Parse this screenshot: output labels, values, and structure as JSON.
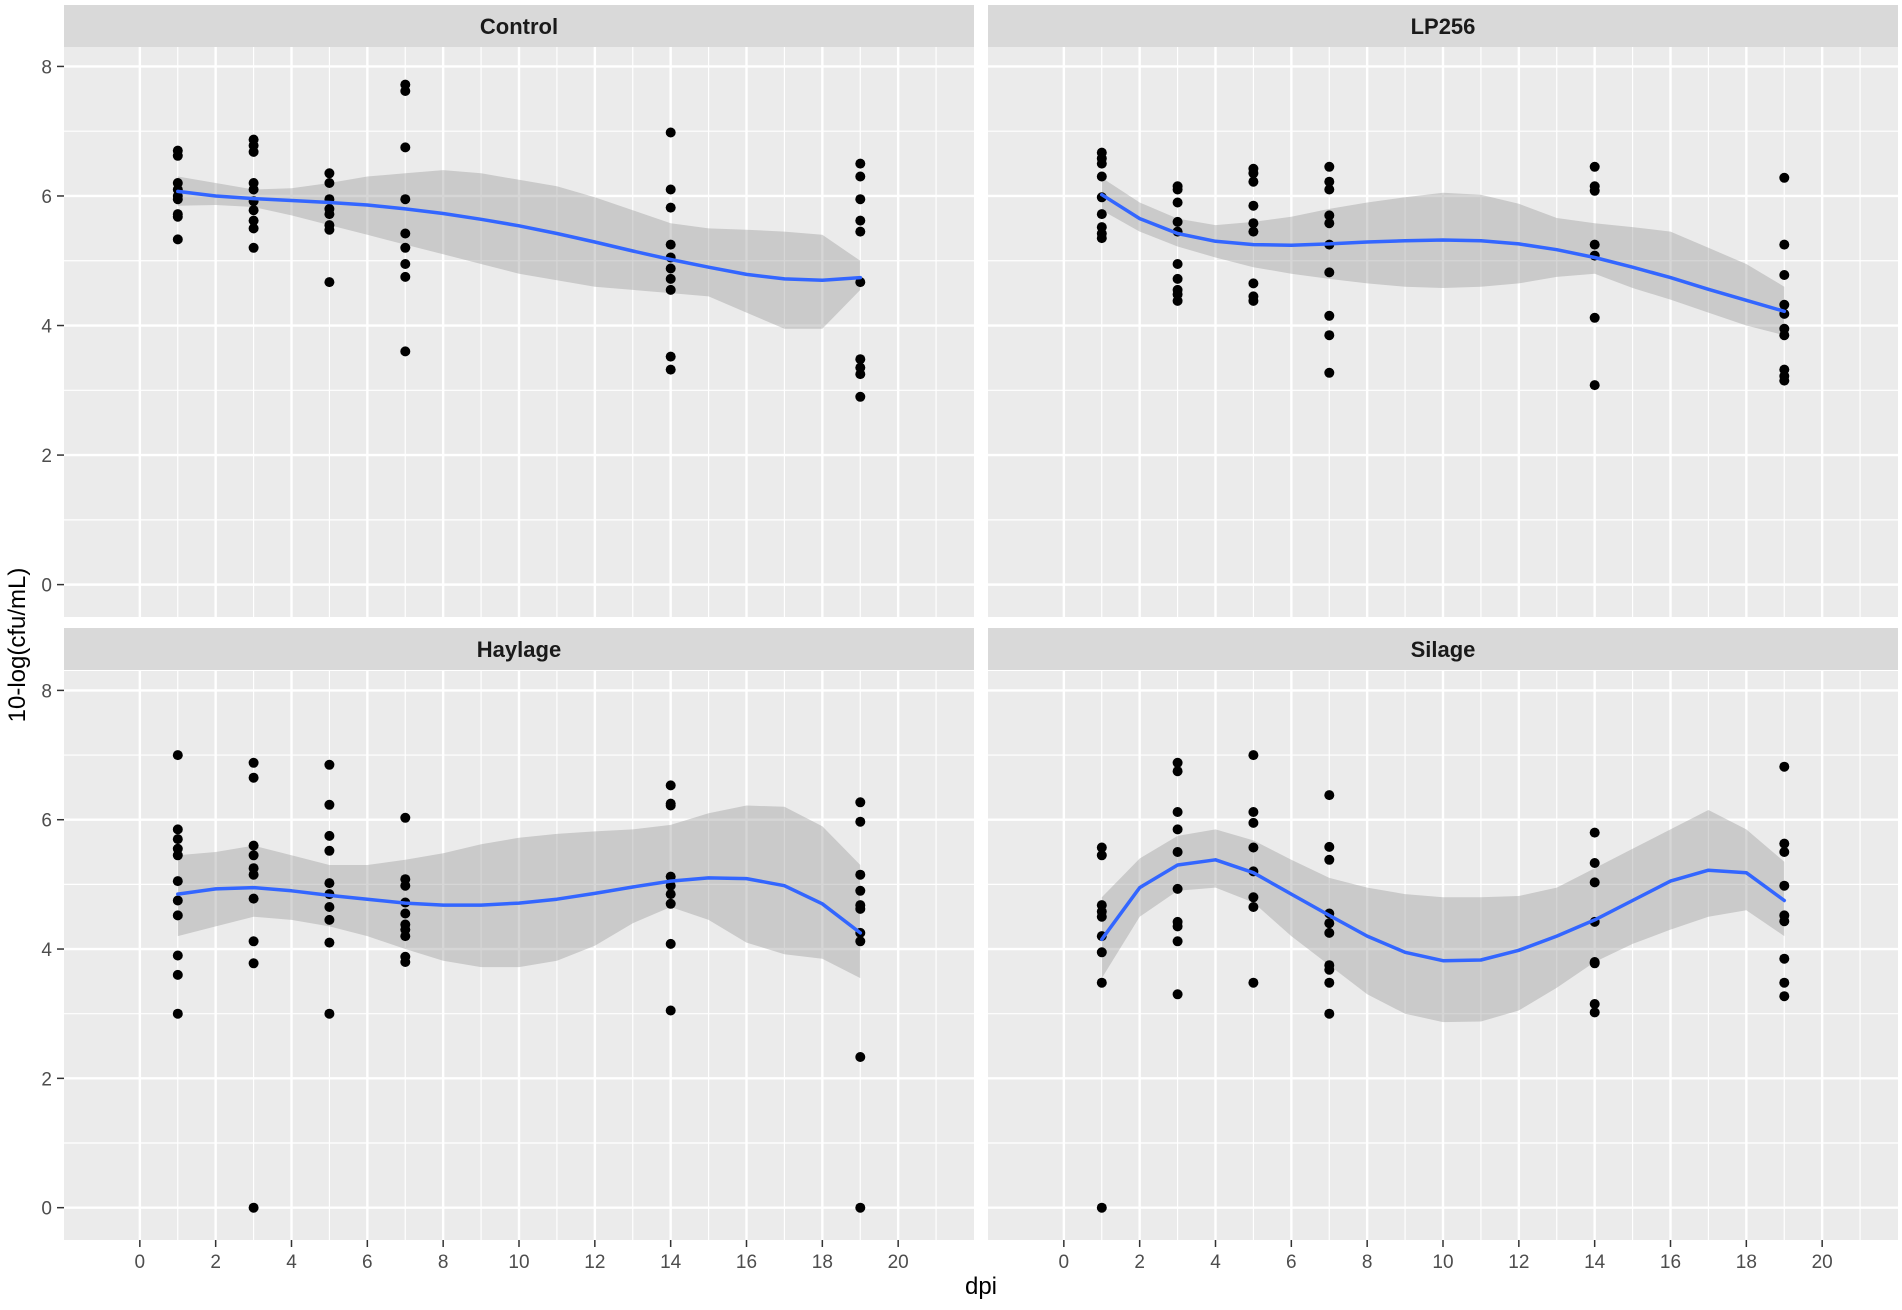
{
  "chart_data": {
    "type": "scatter",
    "layout": "facet-wrap 2x2",
    "xlabel": "dpi",
    "ylabel": "10-log(cfu/mL)",
    "xlim": [
      -2,
      22
    ],
    "ylim": [
      -0.5,
      8.3
    ],
    "x_ticks": [
      0,
      2,
      4,
      6,
      8,
      10,
      12,
      14,
      16,
      18,
      20
    ],
    "y_ticks": [
      0,
      2,
      4,
      6,
      8
    ],
    "colors": {
      "panel_bg": "#ebebeb",
      "strip_bg": "#d9d9d9",
      "grid": "#ffffff",
      "points": "#000000",
      "smooth_line": "#3366ff",
      "ribbon": "#999999"
    },
    "panels": [
      {
        "title": "Control",
        "points": [
          [
            1,
            6.7
          ],
          [
            1,
            6.62
          ],
          [
            1,
            6.2
          ],
          [
            1,
            6.1
          ],
          [
            1,
            6.0
          ],
          [
            1,
            5.95
          ],
          [
            1,
            5.72
          ],
          [
            1,
            5.68
          ],
          [
            1,
            5.33
          ],
          [
            3,
            6.87
          ],
          [
            3,
            6.78
          ],
          [
            3,
            6.68
          ],
          [
            3,
            6.2
          ],
          [
            3,
            6.1
          ],
          [
            3,
            5.92
          ],
          [
            3,
            5.78
          ],
          [
            3,
            5.62
          ],
          [
            3,
            5.5
          ],
          [
            3,
            5.2
          ],
          [
            5,
            6.35
          ],
          [
            5,
            6.2
          ],
          [
            5,
            5.95
          ],
          [
            5,
            5.8
          ],
          [
            5,
            5.72
          ],
          [
            5,
            5.55
          ],
          [
            5,
            5.48
          ],
          [
            5,
            4.67
          ],
          [
            7,
            7.72
          ],
          [
            7,
            7.62
          ],
          [
            7,
            6.75
          ],
          [
            7,
            5.95
          ],
          [
            7,
            5.42
          ],
          [
            7,
            5.2
          ],
          [
            7,
            4.95
          ],
          [
            7,
            4.75
          ],
          [
            7,
            3.6
          ],
          [
            14,
            6.98
          ],
          [
            14,
            6.1
          ],
          [
            14,
            5.82
          ],
          [
            14,
            5.25
          ],
          [
            14,
            5.05
          ],
          [
            14,
            4.88
          ],
          [
            14,
            4.72
          ],
          [
            14,
            4.55
          ],
          [
            14,
            3.52
          ],
          [
            14,
            3.32
          ],
          [
            19,
            6.5
          ],
          [
            19,
            6.3
          ],
          [
            19,
            5.95
          ],
          [
            19,
            5.62
          ],
          [
            19,
            5.45
          ],
          [
            19,
            4.67
          ],
          [
            19,
            3.48
          ],
          [
            19,
            3.35
          ],
          [
            19,
            3.25
          ],
          [
            19,
            2.9
          ]
        ],
        "smooth": {
          "x": [
            1,
            2,
            3,
            4,
            5,
            6,
            7,
            8,
            9,
            10,
            11,
            12,
            13,
            14,
            15,
            16,
            17,
            18,
            19
          ],
          "y": [
            6.07,
            6.0,
            5.96,
            5.93,
            5.9,
            5.86,
            5.8,
            5.73,
            5.64,
            5.54,
            5.42,
            5.29,
            5.15,
            5.02,
            4.9,
            4.79,
            4.72,
            4.7,
            4.74
          ],
          "lower": [
            5.85,
            5.86,
            5.83,
            5.7,
            5.55,
            5.4,
            5.25,
            5.1,
            4.95,
            4.8,
            4.7,
            4.6,
            4.55,
            4.5,
            4.45,
            4.2,
            3.95,
            3.95,
            4.55
          ],
          "upper": [
            6.3,
            6.2,
            6.1,
            6.12,
            6.2,
            6.3,
            6.35,
            6.4,
            6.35,
            6.25,
            6.15,
            5.98,
            5.78,
            5.58,
            5.5,
            5.48,
            5.45,
            5.4,
            5.0
          ]
        }
      },
      {
        "title": "LP256",
        "points": [
          [
            1,
            6.67
          ],
          [
            1,
            6.58
          ],
          [
            1,
            6.5
          ],
          [
            1,
            6.3
          ],
          [
            1,
            5.98
          ],
          [
            1,
            5.72
          ],
          [
            1,
            5.52
          ],
          [
            1,
            5.42
          ],
          [
            1,
            5.35
          ],
          [
            3,
            6.15
          ],
          [
            3,
            6.1
          ],
          [
            3,
            5.9
          ],
          [
            3,
            5.6
          ],
          [
            3,
            5.45
          ],
          [
            3,
            4.95
          ],
          [
            3,
            4.72
          ],
          [
            3,
            4.55
          ],
          [
            3,
            4.48
          ],
          [
            3,
            4.38
          ],
          [
            5,
            6.42
          ],
          [
            5,
            6.35
          ],
          [
            5,
            6.22
          ],
          [
            5,
            5.85
          ],
          [
            5,
            5.58
          ],
          [
            5,
            5.45
          ],
          [
            5,
            4.65
          ],
          [
            5,
            4.45
          ],
          [
            5,
            4.38
          ],
          [
            7,
            6.45
          ],
          [
            7,
            6.22
          ],
          [
            7,
            6.1
          ],
          [
            7,
            5.7
          ],
          [
            7,
            5.58
          ],
          [
            7,
            5.25
          ],
          [
            7,
            4.82
          ],
          [
            7,
            4.15
          ],
          [
            7,
            3.85
          ],
          [
            7,
            3.27
          ],
          [
            14,
            6.45
          ],
          [
            14,
            6.15
          ],
          [
            14,
            6.08
          ],
          [
            14,
            5.25
          ],
          [
            14,
            5.08
          ],
          [
            14,
            4.12
          ],
          [
            14,
            3.08
          ],
          [
            19,
            6.28
          ],
          [
            19,
            5.25
          ],
          [
            19,
            4.78
          ],
          [
            19,
            4.32
          ],
          [
            19,
            4.18
          ],
          [
            19,
            3.95
          ],
          [
            19,
            3.85
          ],
          [
            19,
            3.32
          ],
          [
            19,
            3.22
          ],
          [
            19,
            3.15
          ]
        ],
        "smooth": {
          "x": [
            1,
            2,
            3,
            4,
            5,
            6,
            7,
            8,
            9,
            10,
            11,
            12,
            13,
            14,
            15,
            16,
            17,
            18,
            19
          ],
          "y": [
            6.02,
            5.65,
            5.42,
            5.3,
            5.25,
            5.24,
            5.26,
            5.29,
            5.31,
            5.32,
            5.31,
            5.26,
            5.17,
            5.05,
            4.9,
            4.74,
            4.56,
            4.39,
            4.22
          ],
          "lower": [
            5.78,
            5.45,
            5.22,
            5.05,
            4.9,
            4.8,
            4.72,
            4.65,
            4.6,
            4.58,
            4.6,
            4.65,
            4.75,
            4.8,
            4.58,
            4.4,
            4.2,
            4.0,
            3.85
          ],
          "upper": [
            6.28,
            5.9,
            5.65,
            5.55,
            5.6,
            5.68,
            5.8,
            5.9,
            5.98,
            6.05,
            6.02,
            5.88,
            5.66,
            5.58,
            5.52,
            5.45,
            5.2,
            4.95,
            4.6
          ]
        }
      },
      {
        "title": "Haylage",
        "points": [
          [
            1,
            7.0
          ],
          [
            1,
            5.85
          ],
          [
            1,
            5.7
          ],
          [
            1,
            5.55
          ],
          [
            1,
            5.45
          ],
          [
            1,
            5.05
          ],
          [
            1,
            4.75
          ],
          [
            1,
            4.52
          ],
          [
            1,
            3.9
          ],
          [
            1,
            3.6
          ],
          [
            1,
            3.0
          ],
          [
            3,
            6.88
          ],
          [
            3,
            6.65
          ],
          [
            3,
            5.6
          ],
          [
            3,
            5.45
          ],
          [
            3,
            5.25
          ],
          [
            3,
            5.15
          ],
          [
            3,
            4.78
          ],
          [
            3,
            4.12
          ],
          [
            3,
            3.78
          ],
          [
            3,
            0.0
          ],
          [
            5,
            6.85
          ],
          [
            5,
            6.23
          ],
          [
            5,
            5.75
          ],
          [
            5,
            5.52
          ],
          [
            5,
            5.02
          ],
          [
            5,
            4.85
          ],
          [
            5,
            4.65
          ],
          [
            5,
            4.45
          ],
          [
            5,
            4.1
          ],
          [
            5,
            3.0
          ],
          [
            7,
            6.03
          ],
          [
            7,
            5.08
          ],
          [
            7,
            4.98
          ],
          [
            7,
            4.72
          ],
          [
            7,
            4.55
          ],
          [
            7,
            4.38
          ],
          [
            7,
            4.3
          ],
          [
            7,
            4.2
          ],
          [
            7,
            3.88
          ],
          [
            7,
            3.8
          ],
          [
            14,
            6.53
          ],
          [
            14,
            6.25
          ],
          [
            14,
            6.22
          ],
          [
            14,
            5.12
          ],
          [
            14,
            4.98
          ],
          [
            14,
            4.85
          ],
          [
            14,
            4.7
          ],
          [
            14,
            4.08
          ],
          [
            14,
            3.05
          ],
          [
            19,
            6.27
          ],
          [
            19,
            5.97
          ],
          [
            19,
            5.15
          ],
          [
            19,
            4.9
          ],
          [
            19,
            4.68
          ],
          [
            19,
            4.62
          ],
          [
            19,
            4.25
          ],
          [
            19,
            4.12
          ],
          [
            19,
            2.33
          ],
          [
            19,
            0.0
          ]
        ],
        "smooth": {
          "x": [
            1,
            2,
            3,
            4,
            5,
            6,
            7,
            8,
            9,
            10,
            11,
            12,
            13,
            14,
            15,
            16,
            17,
            18,
            19
          ],
          "y": [
            4.85,
            4.93,
            4.95,
            4.9,
            4.83,
            4.77,
            4.71,
            4.68,
            4.68,
            4.71,
            4.77,
            4.86,
            4.96,
            5.05,
            5.1,
            5.09,
            4.98,
            4.7,
            4.25
          ],
          "lower": [
            4.2,
            4.35,
            4.5,
            4.45,
            4.35,
            4.2,
            4.0,
            3.82,
            3.72,
            3.72,
            3.82,
            4.05,
            4.4,
            4.65,
            4.45,
            4.1,
            3.92,
            3.85,
            3.55
          ],
          "upper": [
            5.45,
            5.5,
            5.6,
            5.45,
            5.3,
            5.3,
            5.38,
            5.48,
            5.62,
            5.72,
            5.78,
            5.82,
            5.85,
            5.92,
            6.1,
            6.22,
            6.2,
            5.9,
            5.3
          ]
        }
      },
      {
        "title": "Silage",
        "points": [
          [
            1,
            5.57
          ],
          [
            1,
            5.45
          ],
          [
            1,
            4.68
          ],
          [
            1,
            4.58
          ],
          [
            1,
            4.5
          ],
          [
            1,
            4.2
          ],
          [
            1,
            3.95
          ],
          [
            1,
            3.48
          ],
          [
            1,
            0.0
          ],
          [
            3,
            6.88
          ],
          [
            3,
            6.75
          ],
          [
            3,
            6.12
          ],
          [
            3,
            5.85
          ],
          [
            3,
            5.5
          ],
          [
            3,
            4.93
          ],
          [
            3,
            4.42
          ],
          [
            3,
            4.35
          ],
          [
            3,
            4.12
          ],
          [
            3,
            3.3
          ],
          [
            5,
            7.0
          ],
          [
            5,
            6.12
          ],
          [
            5,
            5.95
          ],
          [
            5,
            5.57
          ],
          [
            5,
            5.2
          ],
          [
            5,
            4.8
          ],
          [
            5,
            4.65
          ],
          [
            5,
            3.48
          ],
          [
            7,
            6.38
          ],
          [
            7,
            5.58
          ],
          [
            7,
            5.38
          ],
          [
            7,
            4.55
          ],
          [
            7,
            4.4
          ],
          [
            7,
            4.25
          ],
          [
            7,
            3.75
          ],
          [
            7,
            3.68
          ],
          [
            7,
            3.48
          ],
          [
            7,
            3.0
          ],
          [
            14,
            5.8
          ],
          [
            14,
            5.33
          ],
          [
            14,
            5.03
          ],
          [
            14,
            4.42
          ],
          [
            14,
            3.8
          ],
          [
            14,
            3.78
          ],
          [
            14,
            3.15
          ],
          [
            14,
            3.02
          ],
          [
            19,
            6.82
          ],
          [
            19,
            5.63
          ],
          [
            19,
            5.5
          ],
          [
            19,
            4.98
          ],
          [
            19,
            4.52
          ],
          [
            19,
            4.43
          ],
          [
            19,
            3.85
          ],
          [
            19,
            3.48
          ],
          [
            19,
            3.27
          ]
        ],
        "smooth": {
          "x": [
            1,
            2,
            3,
            4,
            5,
            6,
            7,
            8,
            9,
            10,
            11,
            12,
            13,
            14,
            15,
            16,
            17,
            18,
            19
          ],
          "y": [
            4.15,
            4.95,
            5.3,
            5.38,
            5.18,
            4.85,
            4.52,
            4.2,
            3.95,
            3.82,
            3.83,
            3.98,
            4.2,
            4.45,
            4.75,
            5.05,
            5.22,
            5.18,
            4.75
          ],
          "lower": [
            3.55,
            4.5,
            4.9,
            4.95,
            4.72,
            4.2,
            3.75,
            3.3,
            3.0,
            2.87,
            2.88,
            3.05,
            3.4,
            3.8,
            4.08,
            4.3,
            4.5,
            4.6,
            4.2
          ],
          "upper": [
            4.8,
            5.4,
            5.75,
            5.85,
            5.68,
            5.38,
            5.1,
            4.95,
            4.85,
            4.8,
            4.8,
            4.82,
            4.95,
            5.25,
            5.55,
            5.85,
            6.15,
            5.85,
            5.35
          ]
        }
      }
    ]
  }
}
